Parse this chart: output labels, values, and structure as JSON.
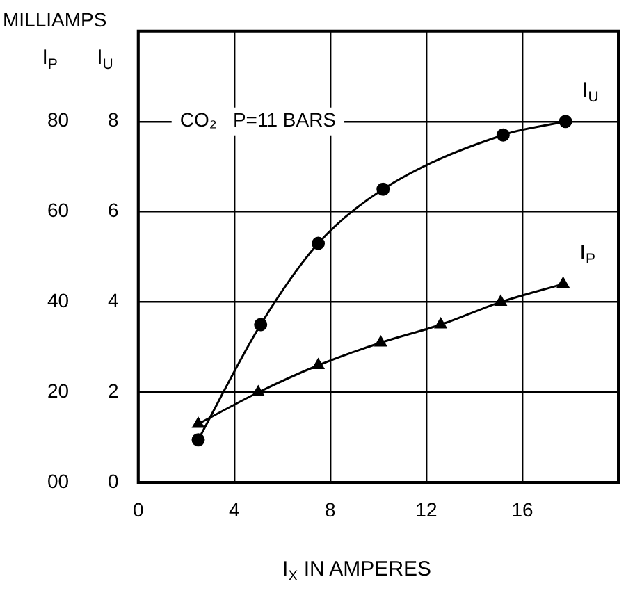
{
  "chart_data": {
    "type": "line",
    "xlabel": "I$_{X}$ IN AMPERES",
    "ylabel": "I$_{P}$",
    "y2label": "I$_{U}$",
    "annotations": [
      "MILLIAMPS",
      "CO₂   P=11 BARS"
    ],
    "xlim": [
      0,
      20
    ],
    "xticks": [
      0,
      4,
      8,
      12,
      16
    ],
    "ylim": [
      0,
      100
    ],
    "yticks": [
      {
        "value": 0,
        "label": "00"
      },
      20,
      40,
      60,
      80
    ],
    "y2lim": [
      0,
      10
    ],
    "y2ticks": [
      0,
      2,
      4,
      6,
      8
    ],
    "grid": true,
    "legend": false,
    "line_style": "solid",
    "series": [
      {
        "name": "I$_{U}$",
        "color": "#000000",
        "axis": "y2",
        "marker": "circle",
        "x": [
          2.5,
          5.1,
          7.5,
          10.2,
          15.2,
          17.8
        ],
        "values": [
          0.95,
          3.5,
          5.3,
          6.5,
          7.7,
          8.0
        ]
      },
      {
        "name": "I$_{P}$",
        "color": "#000000",
        "axis": "y",
        "marker": "triangle",
        "x": [
          2.5,
          5.0,
          7.5,
          10.1,
          12.6,
          15.1,
          17.7
        ],
        "values": [
          13,
          20,
          26,
          31,
          35,
          40,
          44
        ]
      }
    ]
  }
}
